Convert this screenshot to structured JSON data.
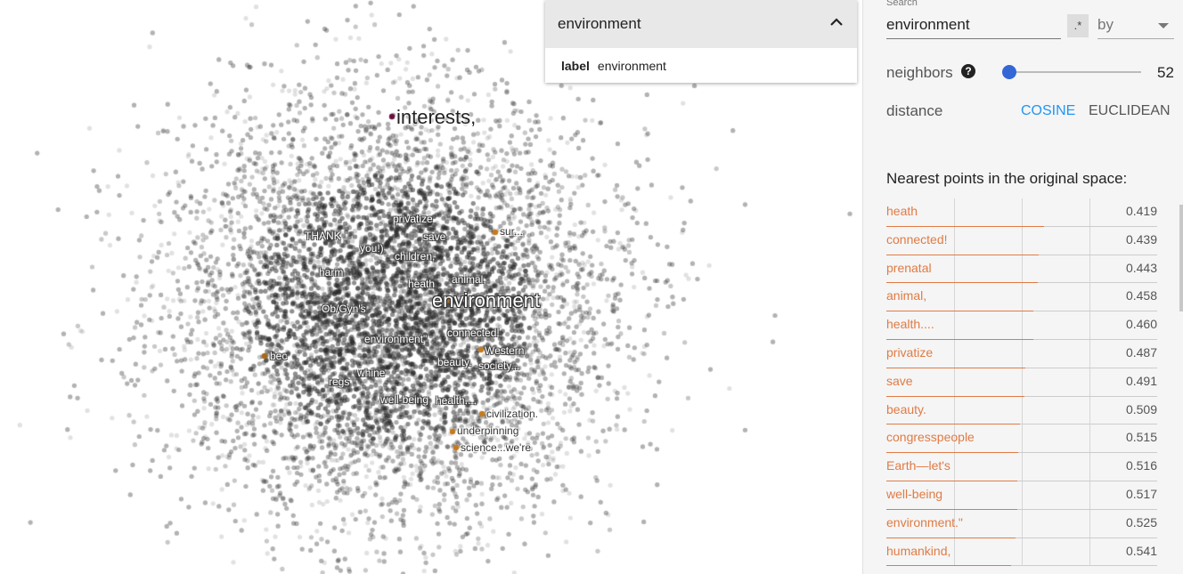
{
  "search_popup": {
    "query": "environment",
    "result_key": "label",
    "result_value": "environment"
  },
  "labels": [
    {
      "text": "interests,",
      "style": "big-dark"
    },
    {
      "text": "environment",
      "style": "big"
    },
    {
      "text": "privatize",
      "style": "normal"
    },
    {
      "text": "save",
      "style": "normal"
    },
    {
      "text": "THANK",
      "style": "normal"
    },
    {
      "text": "you!)",
      "style": "normal"
    },
    {
      "text": "children,",
      "style": "normal"
    },
    {
      "text": "sur...",
      "style": "light"
    },
    {
      "text": "harm",
      "style": "normal"
    },
    {
      "text": "heath",
      "style": "normal"
    },
    {
      "text": "animal,",
      "style": "normal"
    },
    {
      "text": "Ob/Gyn's",
      "style": "normal"
    },
    {
      "text": "environment\"",
      "style": "normal"
    },
    {
      "text": "connected!",
      "style": "normal"
    },
    {
      "text": "Western",
      "style": "normal"
    },
    {
      "text": "bec",
      "style": "normal"
    },
    {
      "text": "beauty.",
      "style": "normal"
    },
    {
      "text": "society...",
      "style": "normal"
    },
    {
      "text": "whine",
      "style": "normal"
    },
    {
      "text": "regs",
      "style": "normal"
    },
    {
      "text": "well-being",
      "style": "normal"
    },
    {
      "text": "health....",
      "style": "normal"
    },
    {
      "text": "civilization.",
      "style": "light"
    },
    {
      "text": "underpinning",
      "style": "light"
    },
    {
      "text": "science...we're",
      "style": "light"
    }
  ],
  "panel": {
    "search_label": "Search",
    "search_value": "environment",
    "regex_label": ".*",
    "by_label": "by",
    "neighbors_label": "neighbors",
    "help_icon": "?",
    "neighbors_value": "52",
    "neighbors_fraction": 0.0,
    "distance_label": "distance",
    "cosine_label": "COSINE",
    "euclidean_label": "EUCLIDEAN",
    "nn_title": "Nearest points in the original space:",
    "accent_color": "#e07b45",
    "active_color": "#2196f3"
  },
  "nearest": [
    {
      "name": "heath",
      "value": "0.419"
    },
    {
      "name": "connected!",
      "value": "0.439"
    },
    {
      "name": "prenatal",
      "value": "0.443"
    },
    {
      "name": "animal,",
      "value": "0.458"
    },
    {
      "name": "health....",
      "value": "0.460"
    },
    {
      "name": "privatize",
      "value": "0.487"
    },
    {
      "name": "save",
      "value": "0.491"
    },
    {
      "name": "beauty.",
      "value": "0.509"
    },
    {
      "name": "congresspeople",
      "value": "0.515"
    },
    {
      "name": "Earth—let's",
      "value": "0.516"
    },
    {
      "name": "well-being",
      "value": "0.517"
    },
    {
      "name": "environment.\"",
      "value": "0.525"
    },
    {
      "name": "humankind,",
      "value": "0.541"
    }
  ]
}
